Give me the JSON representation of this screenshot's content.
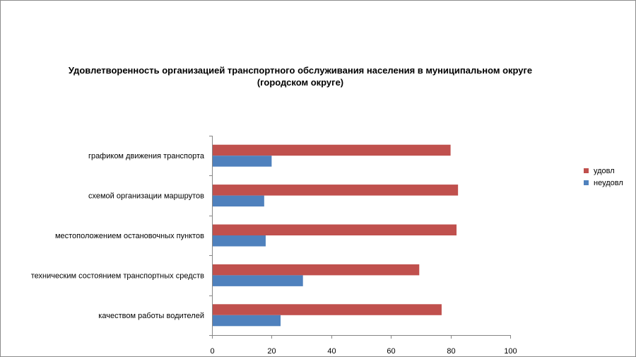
{
  "chart_data": {
    "type": "bar",
    "orientation": "horizontal",
    "title": "Удовлетворенность организацией транспортного обслуживания населения в муниципальном округе (городском округе)",
    "title_lines": [
      "Удовлетворенность организацией транспортного обслуживания населения в муниципальном округе",
      "(городском округе)"
    ],
    "categories": [
      "графиком движения транспорта",
      "схемой организации маршрутов",
      "местоположением остановочных пунктов",
      "техническим состоянием транспортных средств",
      "качеством работы водителей"
    ],
    "series": [
      {
        "name": "удовл",
        "color": "#c0504d",
        "values": [
          80,
          82.5,
          82,
          69.5,
          77
        ]
      },
      {
        "name": "неудовл",
        "color": "#4f81bd",
        "values": [
          20,
          17.5,
          18,
          30.5,
          23
        ]
      }
    ],
    "xlim": [
      0,
      100
    ],
    "xticks": [
      "0",
      "20",
      "40",
      "60",
      "80",
      "100"
    ],
    "xlabel": "",
    "ylabel": "",
    "grid": false,
    "legend_position": "right"
  }
}
